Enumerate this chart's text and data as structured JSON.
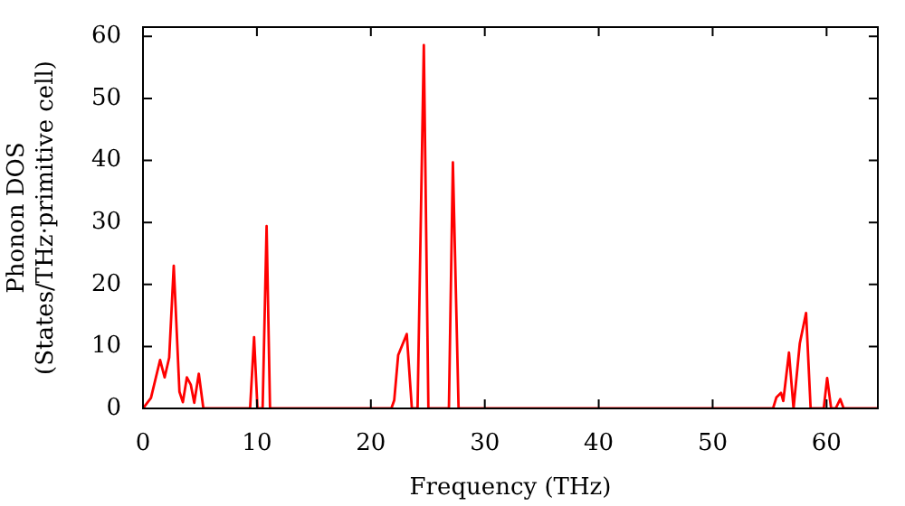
{
  "chart_data": {
    "type": "line",
    "xlabel": "Frequency (THz)",
    "ylabel": "Phonon DOS\n(States/THz·primitive cell)",
    "xlim": [
      0,
      64.5
    ],
    "xticks": [
      0,
      10,
      20,
      30,
      40,
      50,
      60
    ],
    "ylim": [
      0,
      61.5
    ],
    "yticks": [
      0,
      10,
      20,
      30,
      40,
      50,
      60
    ],
    "series": [
      {
        "color": "#ff0000",
        "x": [
          0,
          0.7,
          1.5,
          1.9,
          2.3,
          2.7,
          3.2,
          3.5,
          3.85,
          4.2,
          4.5,
          4.9,
          5.3,
          9.4,
          9.75,
          10.05,
          10.5,
          10.85,
          11.15,
          21.8,
          22.05,
          22.4,
          23.15,
          23.6,
          24.1,
          24.65,
          25.05,
          26.85,
          27.2,
          27.7,
          55.3,
          55.6,
          56.0,
          56.2,
          56.7,
          57.1,
          57.65,
          58.2,
          58.6,
          59.75,
          60.05,
          60.4,
          60.8,
          61.2,
          61.5,
          64.5
        ],
        "values": [
          0,
          1.7,
          7.8,
          5,
          8.2,
          23,
          2.7,
          1,
          5,
          3.8,
          0.9,
          5.6,
          0,
          0,
          11.5,
          0,
          0,
          29.4,
          0,
          0,
          1.3,
          8.6,
          12,
          0,
          0,
          58.6,
          0,
          0,
          39.7,
          0,
          0,
          1.8,
          2.5,
          1.2,
          9,
          0,
          10.5,
          15.4,
          0,
          0,
          4.9,
          0,
          0,
          1.5,
          0,
          0
        ]
      }
    ]
  }
}
